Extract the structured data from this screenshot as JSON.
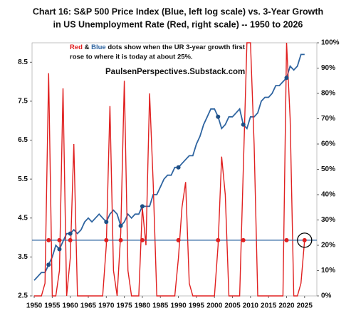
{
  "chart_data": {
    "type": "line",
    "title_lines": [
      "Chart 16: S&P 500 Price Index (Blue, left log scale) vs. 3-Year Growth",
      "in US Unemployment Rate (Red, right scale) -- 1950 to 2026"
    ],
    "annotation_line1": [
      "Red",
      " & ",
      "Blue",
      " dots show when the UR 3-year growth first"
    ],
    "annotation_line2": "rose to where it is today at about 25%.",
    "source": "PaulsenPerspectives.Substack.com",
    "x": [
      1950,
      1951,
      1952,
      1953,
      1954,
      1955,
      1956,
      1957,
      1958,
      1959,
      1960,
      1961,
      1962,
      1963,
      1964,
      1965,
      1966,
      1967,
      1968,
      1969,
      1970,
      1971,
      1972,
      1973,
      1974,
      1975,
      1976,
      1977,
      1978,
      1979,
      1980,
      1981,
      1982,
      1983,
      1984,
      1985,
      1986,
      1987,
      1988,
      1989,
      1990,
      1991,
      1992,
      1993,
      1994,
      1995,
      1996,
      1997,
      1998,
      1999,
      2000,
      2001,
      2002,
      2003,
      2004,
      2005,
      2006,
      2007,
      2008,
      2009,
      2010,
      2011,
      2012,
      2013,
      2014,
      2015,
      2016,
      2017,
      2018,
      2019,
      2020,
      2021,
      2022,
      2023,
      2024,
      2025
    ],
    "series": [
      {
        "color": "#2e64a0",
        "values": [
          2.9,
          3.0,
          3.1,
          3.1,
          3.3,
          3.5,
          3.8,
          3.7,
          3.9,
          4.1,
          4.1,
          4.2,
          4.1,
          4.2,
          4.4,
          4.5,
          4.4,
          4.5,
          4.6,
          4.5,
          4.4,
          4.6,
          4.7,
          4.6,
          4.3,
          4.4,
          4.6,
          4.5,
          4.6,
          4.6,
          4.8,
          4.8,
          4.8,
          5.1,
          5.1,
          5.3,
          5.5,
          5.6,
          5.6,
          5.8,
          5.8,
          5.9,
          6.0,
          6.1,
          6.1,
          6.4,
          6.6,
          6.9,
          7.1,
          7.3,
          7.3,
          7.1,
          6.8,
          6.9,
          7.1,
          7.1,
          7.2,
          7.3,
          6.9,
          6.8,
          7.1,
          7.1,
          7.2,
          7.5,
          7.6,
          7.6,
          7.7,
          7.9,
          7.9,
          8.0,
          8.1,
          8.4,
          8.3,
          8.4,
          8.7,
          8.7
        ]
      },
      {
        "color": "#e02020",
        "axis": "y2",
        "values": [
          0,
          0,
          0,
          5,
          88,
          0,
          0,
          10,
          82,
          0,
          15,
          60,
          0,
          0,
          0,
          0,
          0,
          0,
          0,
          0,
          20,
          75,
          10,
          0,
          25,
          85,
          10,
          0,
          0,
          0,
          35,
          20,
          80,
          45,
          0,
          0,
          0,
          0,
          0,
          0,
          15,
          35,
          45,
          5,
          0,
          0,
          0,
          0,
          0,
          0,
          0,
          20,
          55,
          40,
          0,
          0,
          0,
          0,
          50,
          100,
          100,
          60,
          0,
          0,
          0,
          0,
          0,
          0,
          0,
          0,
          100,
          70,
          0,
          0,
          5,
          22
        ]
      }
    ],
    "reference_y2": 22,
    "dot_years": [
      1954,
      1957,
      1960,
      1970,
      1974,
      1980,
      1990,
      2001,
      2008,
      2020,
      2025
    ],
    "xlim": [
      1949.4,
      2028.4
    ],
    "xticks": [
      1950,
      1955,
      1960,
      1965,
      1970,
      1975,
      1980,
      1985,
      1990,
      1995,
      2000,
      2005,
      2010,
      2015,
      2020,
      2025
    ],
    "ylim": [
      2.5,
      9.0
    ],
    "yticks": [
      2.5,
      3.5,
      4.5,
      5.5,
      6.5,
      7.5,
      8.5
    ],
    "y2lim": [
      0,
      100
    ],
    "y2ticks": [
      {
        "value": 0,
        "label": "0%"
      },
      {
        "value": 10,
        "label": "10%"
      },
      {
        "value": 20,
        "label": "20%"
      },
      {
        "value": 30,
        "label": "30%"
      },
      {
        "value": 40,
        "label": "40%"
      },
      {
        "value": 50,
        "label": "50%"
      },
      {
        "value": 60,
        "label": "60%"
      },
      {
        "value": 70,
        "label": "70%"
      },
      {
        "value": 80,
        "label": "80%"
      },
      {
        "value": 90,
        "label": "90%"
      },
      {
        "value": 100,
        "label": "100%"
      }
    ]
  }
}
